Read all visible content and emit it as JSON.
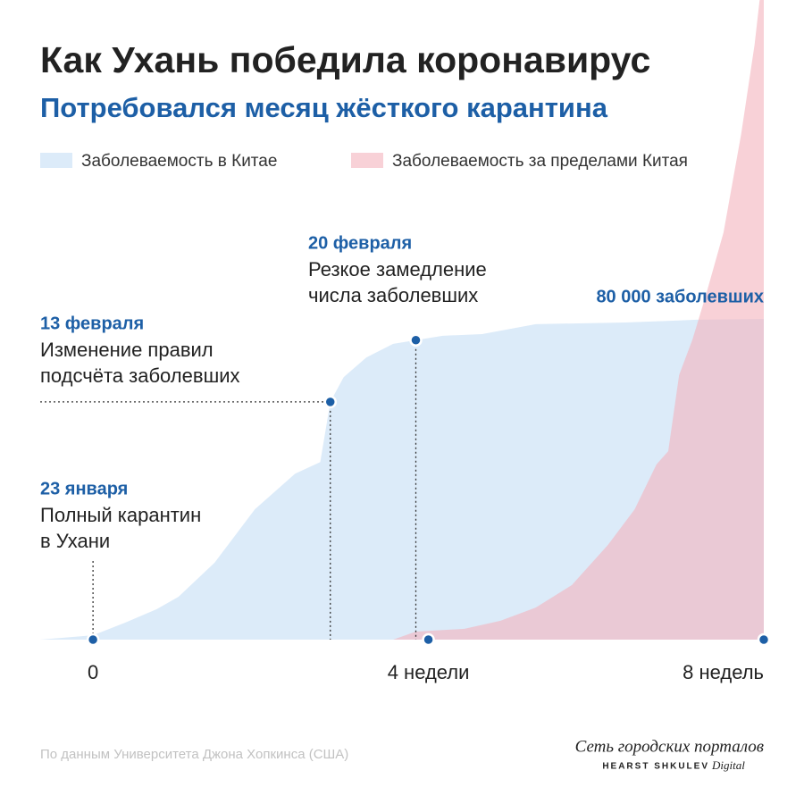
{
  "chart_data": {
    "type": "area",
    "title": "Как Ухань победила коронавирус",
    "subtitle": "Потребовался месяц жёсткого карантина",
    "x": [
      -0.63,
      0,
      0.38,
      0.76,
      1.02,
      1.45,
      1.93,
      2.41,
      2.71,
      2.83,
      2.99,
      3.26,
      3.58,
      3.85,
      4.17,
      4.64,
      5.28,
      6.35,
      7.2,
      8
    ],
    "series": [
      {
        "name": "Заболеваемость в Китае",
        "color": "#dcebf9",
        "x": [
          -0.63,
          0,
          0.38,
          0.76,
          1.02,
          1.45,
          1.93,
          2.41,
          2.71,
          2.83,
          2.99,
          3.26,
          3.58,
          3.85,
          4.17,
          4.64,
          5.28,
          6.35,
          7.2,
          8
        ],
        "values": [
          0,
          1100,
          4200,
          7600,
          10700,
          19200,
          32500,
          41400,
          44300,
          59300,
          65500,
          70400,
          73800,
          74700,
          75800,
          76200,
          78700,
          79100,
          79800,
          80000
        ]
      },
      {
        "name": "Заболеваемость за пределами Китая",
        "color": "#f4b3bd",
        "x": [
          3.58,
          3.85,
          4.43,
          4.86,
          5.28,
          5.71,
          6.14,
          6.46,
          6.72,
          6.86,
          6.99,
          7.15,
          7.31,
          7.52,
          7.73,
          7.89,
          7.95,
          8
        ],
        "values": [
          0,
          2000,
          2700,
          4700,
          8000,
          13600,
          23600,
          32500,
          43700,
          47000,
          66000,
          74900,
          86000,
          101600,
          126100,
          148400,
          159500,
          160000
        ]
      }
    ],
    "xlim": [
      -0.63,
      8
    ],
    "ylim": [
      0,
      160000
    ],
    "xticks": [
      {
        "value": 0,
        "label": "0"
      },
      {
        "value": 4,
        "label": "4 недели"
      },
      {
        "value": 8,
        "label": "8 недель"
      }
    ],
    "peak_label": {
      "value": 80000,
      "label": "80 000 заболевших"
    },
    "annotations": [
      {
        "date": "23 января",
        "lines": [
          "Полный карантин",
          "в Ухани"
        ]
      },
      {
        "date": "13 февраля",
        "lines": [
          "Изменение правил",
          "подсчёта заболевших"
        ]
      },
      {
        "date": "20 февраля",
        "lines": [
          "Резкое замедление",
          "числа заболевших"
        ]
      }
    ],
    "source": "По данным Университета Джона Хопкинса (США)"
  },
  "branding": {
    "name": "Сеть городских порталов",
    "company": "HEARST SHKULEV",
    "suffix": "Digital"
  }
}
